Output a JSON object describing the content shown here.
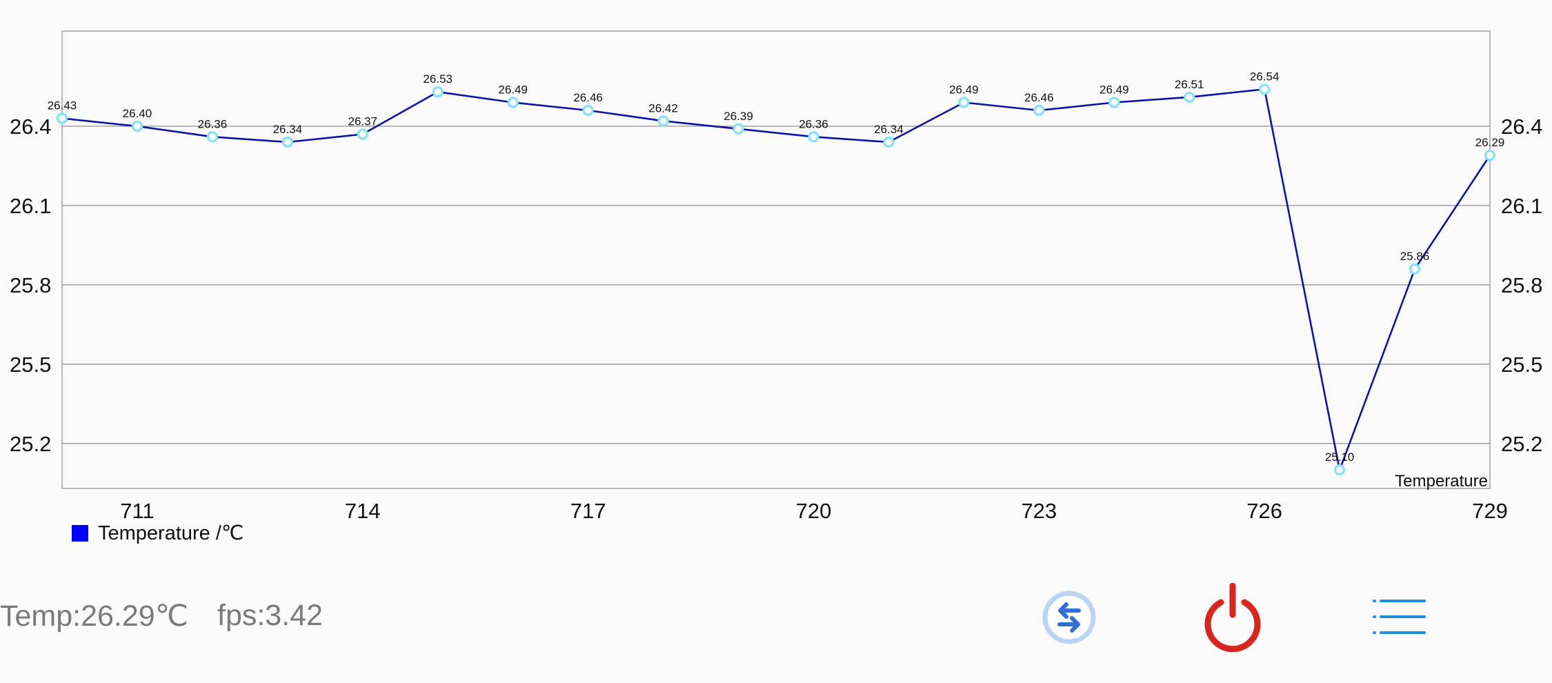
{
  "chart_data": {
    "type": "line",
    "x": [
      710,
      711,
      712,
      713,
      714,
      715,
      716,
      717,
      718,
      719,
      720,
      721,
      722,
      723,
      724,
      725,
      726,
      727,
      728,
      729
    ],
    "series": [
      {
        "name": "Temperature /℃",
        "values": [
          26.43,
          26.4,
          26.36,
          26.34,
          26.37,
          26.53,
          26.49,
          26.46,
          26.42,
          26.39,
          26.36,
          26.34,
          26.49,
          26.46,
          26.49,
          26.51,
          26.54,
          25.1,
          25.86,
          26.29
        ],
        "labels": [
          "26.43",
          "26.40",
          "26.36",
          "26.34",
          "26.37",
          "26.53",
          "26.49",
          "26.46",
          "26.42",
          "26.39",
          "26.36",
          "26.34",
          "26.49",
          "26.46",
          "26.49",
          "26.51",
          "26.54",
          "25.10",
          "25.86",
          "26.29"
        ],
        "color": "#0a12a8",
        "marker_color": "#7fe3f5"
      }
    ],
    "xticks": [
      711,
      714,
      717,
      720,
      723,
      726,
      729
    ],
    "xtick_labels": [
      "711",
      "714",
      "717",
      "720",
      "723",
      "726",
      "729"
    ],
    "yticks": [
      25.2,
      25.5,
      25.8,
      26.1,
      26.4
    ],
    "ytick_labels": [
      "25.2",
      "25.5",
      "25.8",
      "26.1",
      "26.4"
    ],
    "xlim": [
      710,
      729
    ],
    "ylim": [
      25.03,
      26.76
    ],
    "dual_y_axis": true,
    "grid": "horizontal",
    "corner_label": "Temperature",
    "legend": {
      "position": "bottom-left",
      "label": "Temperature /℃",
      "color": "#0000ff"
    }
  },
  "status": {
    "temp": "Temp:26.29℃",
    "fps": "fps:3.42"
  },
  "controls": {
    "swap_icon": "swap-arrows-icon",
    "power_icon": "power-icon",
    "menu_icon": "menu-list-icon",
    "swap_color": "#2f6fd6",
    "power_color": "#d9261c",
    "menu_color": "#1e8fd6"
  }
}
